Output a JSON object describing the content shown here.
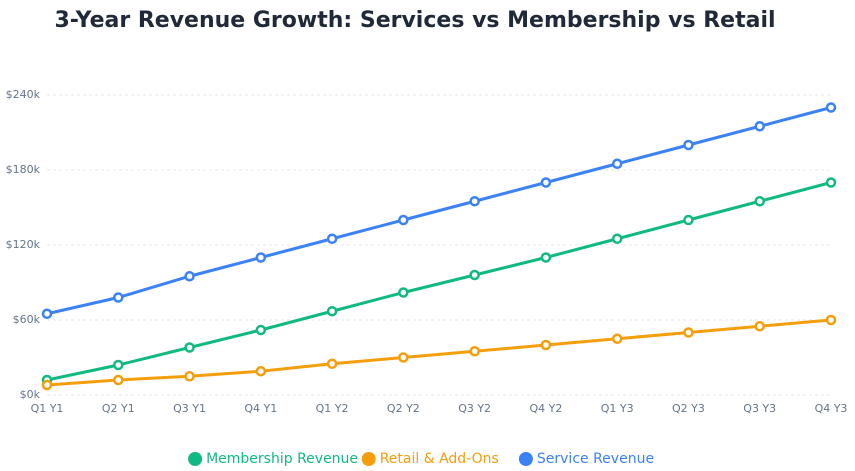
{
  "chart_data": {
    "type": "line",
    "title": "3-Year Revenue Growth: Services vs Membership vs Retail",
    "categories": [
      "Q1 Y1",
      "Q2 Y1",
      "Q3 Y1",
      "Q4 Y1",
      "Q1 Y2",
      "Q2 Y2",
      "Q3 Y2",
      "Q4 Y2",
      "Q1 Y3",
      "Q2 Y3",
      "Q3 Y3",
      "Q4 Y3"
    ],
    "series": [
      {
        "name": "Membership Revenue",
        "color": "#10b981",
        "values": [
          12,
          24,
          38,
          52,
          67,
          82,
          96,
          110,
          125,
          140,
          155,
          170
        ]
      },
      {
        "name": "Retail & Add-Ons",
        "color": "#f59e0b",
        "values": [
          8,
          12,
          15,
          19,
          25,
          30,
          35,
          40,
          45,
          50,
          55,
          60
        ]
      },
      {
        "name": "Service Revenue",
        "color": "#3b82f6",
        "values": [
          65,
          78,
          95,
          110,
          125,
          140,
          155,
          170,
          185,
          200,
          215,
          230
        ]
      }
    ],
    "ylim": [
      0,
      240
    ],
    "yticks": [
      {
        "value": 0,
        "label": "$0k"
      },
      {
        "value": 60,
        "label": "$60k"
      },
      {
        "value": 120,
        "label": "$120k"
      },
      {
        "value": 180,
        "label": "$180k"
      },
      {
        "value": 240,
        "label": "$240k"
      }
    ],
    "grid": true,
    "legend": "bottom"
  }
}
